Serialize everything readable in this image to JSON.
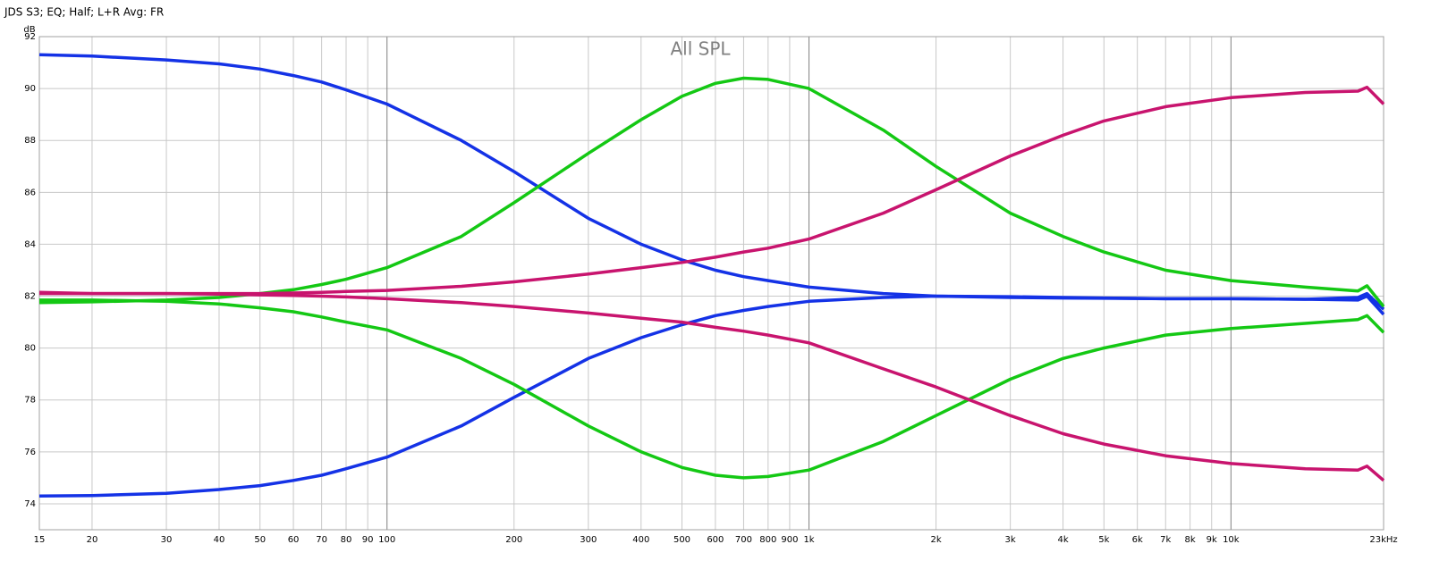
{
  "chart_data": {
    "type": "line",
    "title": "JDS S3; EQ; Half; L+R Avg: FR",
    "plot_label": "All SPL",
    "y_label": "dB",
    "log_x": true,
    "grid": true,
    "xlim": [
      15,
      23000
    ],
    "ylim": [
      73,
      92
    ],
    "xticks": [
      15,
      20,
      30,
      40,
      50,
      60,
      70,
      80,
      90,
      100,
      200,
      300,
      400,
      500,
      600,
      700,
      800,
      900,
      {
        "value": 1000,
        "label": "1k"
      },
      {
        "value": 2000,
        "label": "2k"
      },
      {
        "value": 3000,
        "label": "3k"
      },
      {
        "value": 4000,
        "label": "4k"
      },
      {
        "value": 5000,
        "label": "5k"
      },
      {
        "value": 6000,
        "label": "6k"
      },
      {
        "value": 7000,
        "label": "7k"
      },
      {
        "value": 8000,
        "label": "8k"
      },
      {
        "value": 9000,
        "label": "9k"
      },
      {
        "value": 10000,
        "label": "10k"
      },
      {
        "value": 23000,
        "label": "23kHz"
      }
    ],
    "yticks": [
      74,
      76,
      78,
      80,
      82,
      84,
      86,
      88,
      90,
      92
    ],
    "x": [
      15,
      20,
      30,
      40,
      50,
      60,
      70,
      80,
      100,
      150,
      200,
      300,
      400,
      500,
      600,
      700,
      800,
      1000,
      1500,
      2000,
      3000,
      4000,
      5000,
      7000,
      10000,
      15000,
      20000,
      21000,
      23000
    ],
    "series": [
      {
        "color": "#1432e6",
        "values": [
          91.3,
          91.25,
          91.1,
          90.95,
          90.75,
          90.5,
          90.25,
          89.95,
          89.4,
          88.0,
          86.8,
          85.0,
          84.0,
          83.4,
          83.0,
          82.75,
          82.6,
          82.35,
          82.1,
          82.0,
          81.95,
          81.93,
          81.92,
          81.9,
          81.9,
          81.88,
          81.85,
          82.0,
          81.3
        ]
      },
      {
        "color": "#1432e6",
        "values": [
          74.3,
          74.32,
          74.4,
          74.55,
          74.7,
          74.9,
          75.1,
          75.35,
          75.8,
          77.0,
          78.1,
          79.6,
          80.4,
          80.9,
          81.25,
          81.45,
          81.6,
          81.8,
          81.95,
          82.0,
          81.98,
          81.95,
          81.93,
          81.9,
          81.9,
          81.88,
          81.95,
          82.1,
          81.5
        ]
      },
      {
        "color": "#14c814",
        "values": [
          81.75,
          81.78,
          81.85,
          81.95,
          82.1,
          82.25,
          82.45,
          82.65,
          83.1,
          84.3,
          85.6,
          87.5,
          88.8,
          89.7,
          90.2,
          90.4,
          90.35,
          90.0,
          88.4,
          87.0,
          85.2,
          84.3,
          83.7,
          83.0,
          82.6,
          82.35,
          82.2,
          82.4,
          81.6
        ]
      },
      {
        "color": "#14c814",
        "values": [
          81.85,
          81.85,
          81.8,
          81.7,
          81.55,
          81.4,
          81.2,
          81.0,
          80.7,
          79.6,
          78.6,
          77.0,
          76.0,
          75.4,
          75.1,
          75.0,
          75.05,
          75.3,
          76.4,
          77.4,
          78.8,
          79.6,
          80.0,
          80.5,
          80.75,
          80.95,
          81.1,
          81.25,
          80.6
        ]
      },
      {
        "color": "#c8146e",
        "values": [
          82.1,
          82.1,
          82.1,
          82.1,
          82.1,
          82.12,
          82.15,
          82.18,
          82.22,
          82.38,
          82.55,
          82.85,
          83.1,
          83.3,
          83.5,
          83.7,
          83.85,
          84.2,
          85.2,
          86.1,
          87.4,
          88.2,
          88.75,
          89.3,
          89.65,
          89.85,
          89.9,
          90.05,
          89.4
        ]
      },
      {
        "color": "#c8146e",
        "values": [
          82.15,
          82.1,
          82.1,
          82.08,
          82.05,
          82.03,
          82.0,
          81.97,
          81.9,
          81.75,
          81.6,
          81.35,
          81.15,
          81.0,
          80.8,
          80.65,
          80.5,
          80.2,
          79.2,
          78.5,
          77.4,
          76.7,
          76.3,
          75.85,
          75.55,
          75.35,
          75.3,
          75.45,
          74.9
        ]
      }
    ]
  }
}
